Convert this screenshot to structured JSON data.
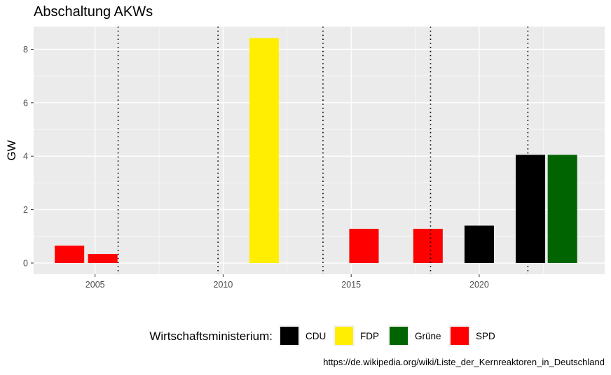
{
  "chart_data": {
    "type": "bar",
    "title": "Abschaltung AKWs",
    "xlabel": "",
    "ylabel": "GW",
    "xlim": [
      2002.6,
      2024.9
    ],
    "ylim": [
      -0.42,
      8.85
    ],
    "x_ticks": [
      2005,
      2010,
      2015,
      2020
    ],
    "y_ticks": [
      0,
      2,
      4,
      6,
      8
    ],
    "bar_width_years": 1.15,
    "grid": true,
    "bars": [
      {
        "x": 2004.0,
        "value": 0.65,
        "party": "SPD"
      },
      {
        "x": 2005.3,
        "value": 0.34,
        "party": "SPD"
      },
      {
        "x": 2011.6,
        "value": 8.42,
        "party": "FDP"
      },
      {
        "x": 2015.5,
        "value": 1.28,
        "party": "SPD"
      },
      {
        "x": 2018.0,
        "value": 1.28,
        "party": "SPD"
      },
      {
        "x": 2020.0,
        "value": 1.4,
        "party": "CDU"
      },
      {
        "x": 2022.0,
        "value": 4.05,
        "party": "CDU"
      },
      {
        "x": 2023.25,
        "value": 4.05,
        "party": "Grüne"
      }
    ],
    "vlines": [
      2005.9,
      2009.8,
      2013.9,
      2018.1,
      2021.9
    ],
    "legend": {
      "placement": "bottom",
      "title": "Wirtschaftsministerium:",
      "entries": [
        {
          "name": "CDU",
          "color": "#000000"
        },
        {
          "name": "FDP",
          "color": "#FFEE00"
        },
        {
          "name": "Grüne",
          "color": "#006400"
        },
        {
          "name": "SPD",
          "color": "#FF0000"
        }
      ]
    },
    "caption": "https://de.wikipedia.org/wiki/Liste_der_Kernreaktoren_in_Deutschland"
  }
}
